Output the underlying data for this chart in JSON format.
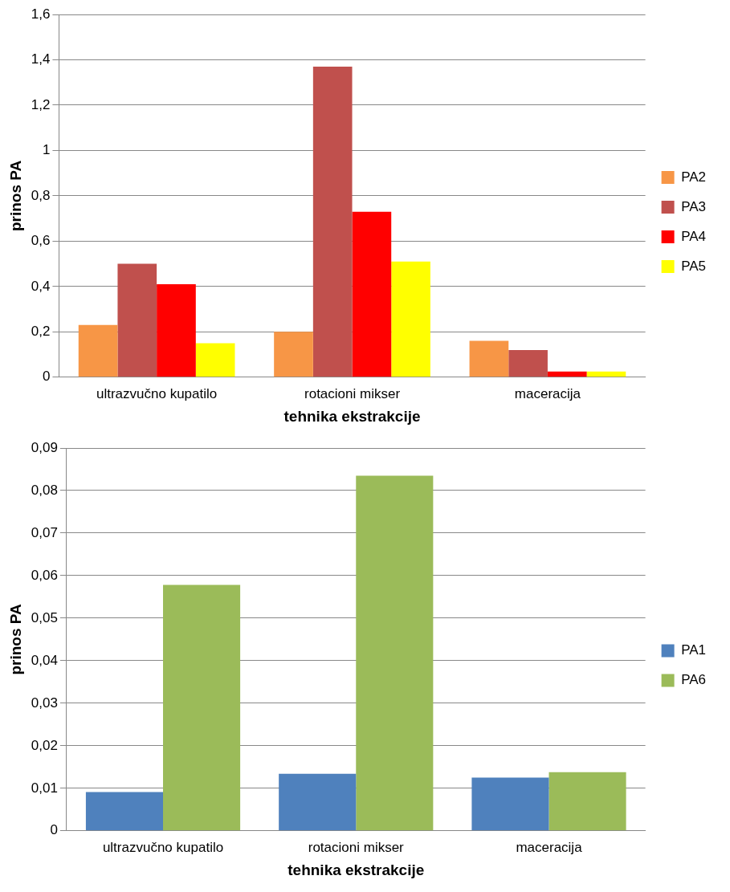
{
  "chart_data": [
    {
      "type": "bar",
      "xlabel": "tehnika ekstrakcije",
      "ylabel": "prinos PA",
      "categories": [
        "ultrazvučno kupatilo",
        "rotacioni mikser",
        "maceracija"
      ],
      "series": [
        {
          "name": "PA2",
          "color": "#f79646",
          "values": [
            0.23,
            0.2,
            0.16
          ]
        },
        {
          "name": "PA3",
          "color": "#c0504d",
          "values": [
            0.5,
            1.37,
            0.12
          ]
        },
        {
          "name": "PA4",
          "color": "#ff0000",
          "values": [
            0.41,
            0.73,
            0.025
          ]
        },
        {
          "name": "PA5",
          "color": "#ffff00",
          "values": [
            0.15,
            0.51,
            0.025
          ]
        }
      ],
      "ylim": [
        0,
        1.6
      ],
      "yticks": [
        {
          "value": 0,
          "label": "0"
        },
        {
          "value": 0.2,
          "label": "0,2"
        },
        {
          "value": 0.4,
          "label": "0,4"
        },
        {
          "value": 0.6,
          "label": "0,6"
        },
        {
          "value": 0.8,
          "label": "0,8"
        },
        {
          "value": 1,
          "label": "1"
        },
        {
          "value": 1.2,
          "label": "1,2"
        },
        {
          "value": 1.4,
          "label": "1,4"
        },
        {
          "value": 1.6,
          "label": "1,6"
        }
      ],
      "grid": "y",
      "legend": "right"
    },
    {
      "type": "bar",
      "xlabel": "tehnika ekstrakcije",
      "ylabel": "prinos PA",
      "categories": [
        "ultrazvučno kupatilo",
        "rotacioni mikser",
        "maceracija"
      ],
      "series": [
        {
          "name": "PA1",
          "color": "#4f81bd",
          "values": [
            0.0091,
            0.0134,
            0.0125
          ]
        },
        {
          "name": "PA6",
          "color": "#9bbb59",
          "values": [
            0.0578,
            0.0835,
            0.0138
          ]
        }
      ],
      "ylim": [
        0,
        0.09
      ],
      "yticks": [
        {
          "value": 0,
          "label": "0"
        },
        {
          "value": 0.01,
          "label": "0,01"
        },
        {
          "value": 0.02,
          "label": "0,02"
        },
        {
          "value": 0.03,
          "label": "0,03"
        },
        {
          "value": 0.04,
          "label": "0,04"
        },
        {
          "value": 0.05,
          "label": "0,05"
        },
        {
          "value": 0.06,
          "label": "0,06"
        },
        {
          "value": 0.07,
          "label": "0,07"
        },
        {
          "value": 0.08,
          "label": "0,08"
        },
        {
          "value": 0.09,
          "label": "0,09"
        }
      ],
      "grid": "y",
      "legend": "right"
    }
  ]
}
